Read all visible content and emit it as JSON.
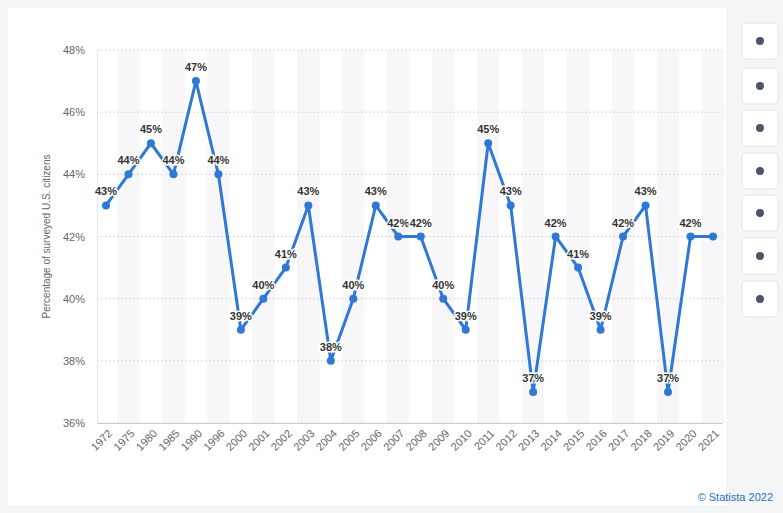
{
  "chart_data": {
    "type": "line",
    "y_label": "Percentage of surveyed U.S. citizens",
    "credit": "© Statista 2022",
    "categories": [
      "1972",
      "1975",
      "1980",
      "1985",
      "1990",
      "1996",
      "2000",
      "2001",
      "2002",
      "2003",
      "2004",
      "2005",
      "2006",
      "2007",
      "2008",
      "2009",
      "2010",
      "2011",
      "2012",
      "2013",
      "2014",
      "2015",
      "2016",
      "2017",
      "2018",
      "2019",
      "2020",
      "2021"
    ],
    "values": [
      43,
      44,
      45,
      44,
      47,
      44,
      39,
      40,
      41,
      43,
      38,
      40,
      43,
      42,
      42,
      40,
      39,
      45,
      43,
      37,
      42,
      41,
      39,
      42,
      43,
      37,
      42,
      42
    ],
    "value_labels": [
      "43%",
      "44%",
      "45%",
      "44%",
      "47%",
      "44%",
      "39%",
      "40%",
      "41%",
      "43%",
      "38%",
      "40%",
      "43%",
      "42%",
      "42%",
      "40%",
      "39%",
      "45%",
      "43%",
      "37%",
      "42%",
      "41%",
      "39%",
      "42%",
      "43%",
      "37%",
      "42%",
      null
    ],
    "color": "#2f78d6",
    "marker": "circle",
    "ylim": [
      36,
      48
    ],
    "yticks": [
      {
        "value": 36,
        "label": "36%"
      },
      {
        "value": 38,
        "label": "38%"
      },
      {
        "value": 40,
        "label": "40%"
      },
      {
        "value": 42,
        "label": "42%"
      },
      {
        "value": 44,
        "label": "44%"
      },
      {
        "value": 46,
        "label": "46%"
      },
      {
        "value": 48,
        "label": "48%"
      }
    ],
    "grid": true,
    "data_labels": true
  }
}
